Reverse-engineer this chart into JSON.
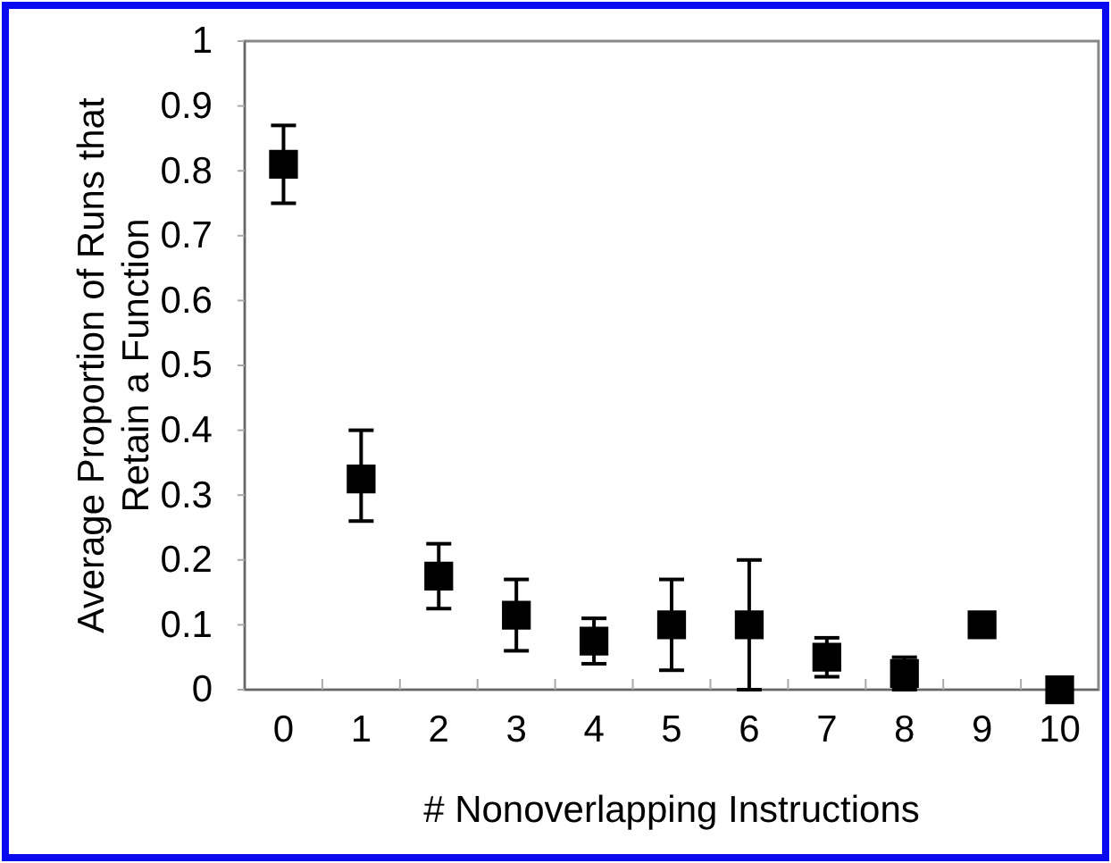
{
  "chart_data": {
    "type": "scatter",
    "xlabel": "# Nonoverlapping Instructions",
    "ylabel": "Average Proportion of Runs that Retain a Function",
    "categories": [
      "0",
      "1",
      "2",
      "3",
      "4",
      "5",
      "6",
      "7",
      "8",
      "9",
      "10"
    ],
    "values": [
      0.81,
      0.325,
      0.175,
      0.115,
      0.075,
      0.1,
      0.1,
      0.05,
      0.025,
      0.1,
      0
    ],
    "errors": [
      [
        0.75,
        0.87
      ],
      [
        0.26,
        0.4
      ],
      [
        0.125,
        0.225
      ],
      [
        0.06,
        0.17
      ],
      [
        0.04,
        0.11
      ],
      [
        0.03,
        0.17
      ],
      [
        0,
        0.2
      ],
      [
        0.02,
        0.08
      ],
      [
        0,
        0.05
      ],
      null,
      null
    ],
    "color": "#000000",
    "marker": "square",
    "grid": false,
    "ylim": [
      0,
      1
    ],
    "yticks": [
      0,
      0.1,
      0.2,
      0.3,
      0.4,
      0.5,
      0.6,
      0.7,
      0.8,
      0.9,
      1
    ]
  }
}
